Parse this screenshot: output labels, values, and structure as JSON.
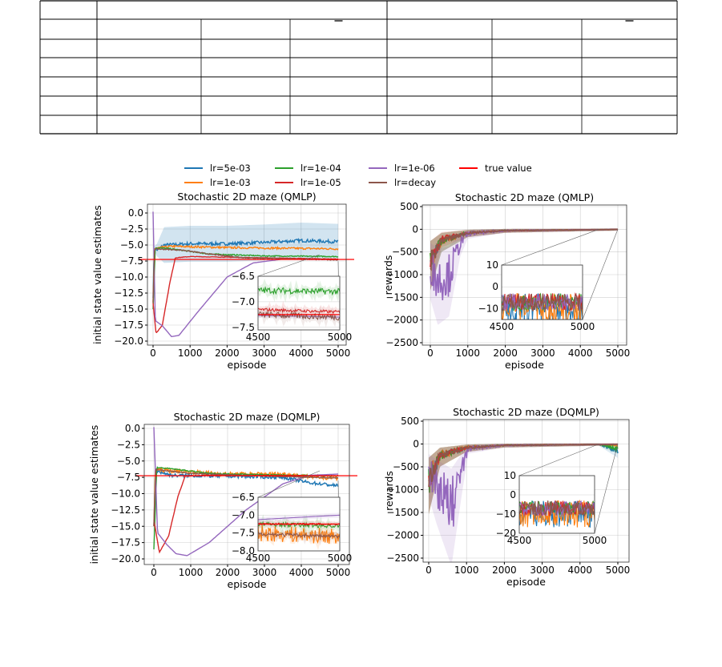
{
  "table": {
    "rows": 7,
    "columns": 7,
    "overbar_columns": [
      3,
      6
    ]
  },
  "legend": [
    {
      "label": "lr=5e-03",
      "color": "#1f77b4"
    },
    {
      "label": "lr=1e-03",
      "color": "#ff7f0e"
    },
    {
      "label": "lr=1e-04",
      "color": "#2ca02c"
    },
    {
      "label": "lr=1e-05",
      "color": "#d62728"
    },
    {
      "label": "lr=1e-06",
      "color": "#9467bd"
    },
    {
      "label": "lr=decay",
      "color": "#8c564b"
    },
    {
      "label": "true value",
      "color": "#ff0000"
    }
  ],
  "chart_data": [
    {
      "type": "line",
      "title": "Stochastic 2D maze (QMLP)",
      "xlabel": "episode",
      "ylabel": "initial state value estimates",
      "xlim": [
        -200,
        5200
      ],
      "ylim": [
        -21,
        1.5
      ],
      "xticks": [
        0,
        1000,
        2000,
        3000,
        4000,
        5000
      ],
      "yticks": [
        0.0,
        -2.5,
        -5.0,
        -7.5,
        -10.0,
        -12.5,
        -15.0,
        -17.5,
        -20.0
      ],
      "ytick_labels": [
        "0.0",
        "−2.5",
        "−5.0",
        "−7.5",
        "−10.0",
        "−12.5",
        "−15.0",
        "−17.5",
        "−20.0"
      ],
      "true_value": -7.25,
      "grid": true,
      "series": [
        {
          "name": "lr=5e-03",
          "points": [
            [
              0,
              -13
            ],
            [
              30,
              -5.5
            ],
            [
              100,
              -5.8
            ],
            [
              300,
              -5
            ],
            [
              1000,
              -4.8
            ],
            [
              2000,
              -4.8
            ],
            [
              3000,
              -4.6
            ],
            [
              4000,
              -4.3
            ],
            [
              5000,
              -4.5
            ]
          ],
          "noise": 0.25,
          "band": 2.8
        },
        {
          "name": "lr=1e-03",
          "points": [
            [
              0,
              -14
            ],
            [
              40,
              -5.5
            ],
            [
              500,
              -5.2
            ],
            [
              2000,
              -5.4
            ],
            [
              5000,
              -5.6
            ]
          ],
          "noise": 0.15
        },
        {
          "name": "lr=1e-04",
          "points": [
            [
              0,
              -15
            ],
            [
              60,
              -5.4
            ],
            [
              500,
              -5.6
            ],
            [
              1500,
              -6.4
            ],
            [
              3000,
              -6.7
            ],
            [
              5000,
              -6.8
            ]
          ],
          "noise": 0.08
        },
        {
          "name": "lr=1e-05",
          "points": [
            [
              0,
              -14
            ],
            [
              80,
              -18.8
            ],
            [
              250,
              -17.5
            ],
            [
              450,
              -11
            ],
            [
              600,
              -7
            ],
            [
              1000,
              -6.8
            ],
            [
              3000,
              -7
            ],
            [
              5000,
              -7.2
            ]
          ],
          "noise": 0.04
        },
        {
          "name": "lr=1e-06",
          "points": [
            [
              0,
              0.2
            ],
            [
              60,
              -16.8
            ],
            [
              250,
              -17.6
            ],
            [
              500,
              -19.3
            ],
            [
              700,
              -19.1
            ],
            [
              1200,
              -15.5
            ],
            [
              2000,
              -10
            ],
            [
              2700,
              -7.8
            ],
            [
              3500,
              -7.2
            ],
            [
              5000,
              -7.3
            ]
          ],
          "noise": 0
        },
        {
          "name": "lr=decay",
          "points": [
            [
              0,
              -14
            ],
            [
              40,
              -5.6
            ],
            [
              800,
              -5.8
            ],
            [
              1500,
              -6.4
            ],
            [
              2500,
              -7
            ],
            [
              4000,
              -7.2
            ],
            [
              5000,
              -7.3
            ]
          ],
          "noise": 0.08
        }
      ],
      "inset": {
        "xlim": [
          4500,
          5000
        ],
        "ylim": [
          -7.55,
          -6.5
        ],
        "yticks": [
          -6.5,
          -7.0,
          -7.5
        ],
        "ytick_labels": [
          "−6.5",
          "−7.0",
          "−7.5"
        ],
        "xticks": [
          4500,
          5000
        ]
      }
    },
    {
      "type": "line",
      "title": "Stochastic 2D maze (QMLP)",
      "xlabel": "episode",
      "ylabel": "rewards",
      "xlim": [
        -200,
        5200
      ],
      "ylim": [
        -2550,
        500
      ],
      "xticks": [
        0,
        1000,
        2000,
        3000,
        4000,
        5000
      ],
      "yticks": [
        500,
        0,
        -500,
        -1000,
        -1500,
        -2000,
        -2500
      ],
      "ytick_labels": [
        "500",
        "0",
        "−500",
        "−1000",
        "−1500",
        "−2000",
        "−2500"
      ],
      "grid": true,
      "series": [
        {
          "name": "lr=5e-03",
          "points": [
            [
              0,
              -700
            ],
            [
              300,
              -250
            ],
            [
              1000,
              -80
            ],
            [
              2000,
              -30
            ],
            [
              5000,
              -5
            ]
          ],
          "noise": 0.4
        },
        {
          "name": "lr=1e-03",
          "points": [
            [
              0,
              -700
            ],
            [
              300,
              -250
            ],
            [
              1000,
              -80
            ],
            [
              2000,
              -30
            ],
            [
              5000,
              -5
            ]
          ],
          "noise": 0.4
        },
        {
          "name": "lr=1e-04",
          "points": [
            [
              0,
              -700
            ],
            [
              300,
              -250
            ],
            [
              1000,
              -80
            ],
            [
              2000,
              -30
            ],
            [
              5000,
              -5
            ]
          ],
          "noise": 0.4
        },
        {
          "name": "lr=1e-05",
          "points": [
            [
              0,
              -700
            ],
            [
              300,
              -200
            ],
            [
              1000,
              -80
            ],
            [
              2000,
              -30
            ],
            [
              5000,
              -5
            ]
          ],
          "noise": 0.4
        },
        {
          "name": "lr=1e-06",
          "points": [
            [
              0,
              -800
            ],
            [
              200,
              -1100
            ],
            [
              500,
              -1000
            ],
            [
              800,
              -300
            ],
            [
              1000,
              -100
            ],
            [
              2000,
              -30
            ],
            [
              5000,
              -5
            ]
          ],
          "noise": 0.6
        },
        {
          "name": "lr=decay",
          "points": [
            [
              0,
              -700
            ],
            [
              300,
              -250
            ],
            [
              1000,
              -80
            ],
            [
              2000,
              -30
            ],
            [
              5000,
              -5
            ]
          ],
          "noise": 0.4
        }
      ],
      "inset": {
        "xlim": [
          4500,
          5000
        ],
        "ylim": [
          -15,
          10
        ],
        "yticks": [
          10,
          0,
          -10
        ],
        "ytick_labels": [
          "10",
          "0",
          "−10"
        ],
        "xticks": [
          4500,
          5000
        ]
      }
    },
    {
      "type": "line",
      "title": "Stochastic 2D maze (DQMLP)",
      "xlabel": "episode",
      "ylabel": "initial state value estimates",
      "xlim": [
        -200,
        5200
      ],
      "ylim": [
        -20.5,
        1.3
      ],
      "xticks": [
        0,
        1000,
        2000,
        3000,
        4000,
        5000
      ],
      "yticks": [
        0.0,
        -2.5,
        -5.0,
        -7.5,
        -10.0,
        -12.5,
        -15.0,
        -17.5,
        -20.0
      ],
      "ytick_labels": [
        "0.0",
        "−2.5",
        "−5.0",
        "−7.5",
        "−10.0",
        "−12.5",
        "−15.0",
        "−17.5",
        "−20.0"
      ],
      "true_value": -7.25,
      "grid": true,
      "series": [
        {
          "name": "lr=5e-03",
          "points": [
            [
              0,
              -15
            ],
            [
              40,
              -6.5
            ],
            [
              500,
              -7.2
            ],
            [
              2000,
              -7.3
            ],
            [
              3500,
              -7.5
            ],
            [
              4200,
              -8.3
            ],
            [
              5000,
              -8.8
            ]
          ],
          "noise": 0.25
        },
        {
          "name": "lr=1e-03",
          "points": [
            [
              0,
              -15
            ],
            [
              40,
              -6.3
            ],
            [
              500,
              -6.5
            ],
            [
              2000,
              -7
            ],
            [
              3500,
              -7
            ],
            [
              4500,
              -7.5
            ],
            [
              5000,
              -7.6
            ]
          ],
          "noise": 0.3
        },
        {
          "name": "lr=1e-04",
          "points": [
            [
              0,
              -18.5
            ],
            [
              80,
              -6
            ],
            [
              500,
              -6.2
            ],
            [
              1500,
              -6.9
            ],
            [
              3000,
              -7.1
            ],
            [
              5000,
              -7.3
            ]
          ],
          "noise": 0.08
        },
        {
          "name": "lr=1e-05",
          "points": [
            [
              0,
              -14
            ],
            [
              150,
              -19
            ],
            [
              400,
              -16.5
            ],
            [
              650,
              -10.5
            ],
            [
              850,
              -7.3
            ],
            [
              1500,
              -7.2
            ],
            [
              5000,
              -7.25
            ]
          ],
          "noise": 0.03
        },
        {
          "name": "lr=1e-06",
          "points": [
            [
              0,
              0.2
            ],
            [
              100,
              -16
            ],
            [
              350,
              -17.8
            ],
            [
              600,
              -19.2
            ],
            [
              900,
              -19.5
            ],
            [
              1500,
              -17.5
            ],
            [
              2500,
              -12.5
            ],
            [
              3500,
              -8.5
            ],
            [
              4200,
              -7.2
            ],
            [
              5000,
              -7.0
            ]
          ],
          "noise": 0
        },
        {
          "name": "lr=decay",
          "points": [
            [
              0,
              -15
            ],
            [
              50,
              -6.3
            ],
            [
              1000,
              -6.9
            ],
            [
              3000,
              -7.3
            ],
            [
              5000,
              -7.6
            ]
          ],
          "noise": 0.06
        }
      ],
      "inset": {
        "xlim": [
          4500,
          5000
        ],
        "ylim": [
          -8.0,
          -6.5
        ],
        "yticks": [
          -6.5,
          -7.0,
          -7.5,
          -8.0
        ],
        "ytick_labels": [
          "−6.5",
          "−7.0",
          "−7.5",
          "−8.0"
        ],
        "xticks": [
          4500,
          5000
        ]
      }
    },
    {
      "type": "line",
      "title": "Stochastic 2D maze (DQMLP)",
      "xlabel": "episode",
      "ylabel": "rewards",
      "xlim": [
        -200,
        5200
      ],
      "ylim": [
        -2550,
        500
      ],
      "xticks": [
        0,
        1000,
        2000,
        3000,
        4000,
        5000
      ],
      "yticks": [
        500,
        0,
        -500,
        -1000,
        -1500,
        -2000,
        -2500
      ],
      "ytick_labels": [
        "500",
        "0",
        "−500",
        "−1000",
        "−1500",
        "−2000",
        "−2500"
      ],
      "grid": true,
      "series": [
        {
          "name": "lr=5e-03",
          "points": [
            [
              0,
              -800
            ],
            [
              300,
              -250
            ],
            [
              1000,
              -80
            ],
            [
              2000,
              -30
            ],
            [
              4500,
              -10
            ],
            [
              5000,
              -150
            ]
          ],
          "noise": 0.5
        },
        {
          "name": "lr=1e-03",
          "points": [
            [
              0,
              -800
            ],
            [
              300,
              -250
            ],
            [
              1000,
              -80
            ],
            [
              2000,
              -30
            ],
            [
              4500,
              -10
            ],
            [
              5000,
              -40
            ]
          ],
          "noise": 0.5
        },
        {
          "name": "lr=1e-04",
          "points": [
            [
              0,
              -800
            ],
            [
              300,
              -250
            ],
            [
              1000,
              -80
            ],
            [
              2000,
              -30
            ],
            [
              4500,
              -10
            ],
            [
              5000,
              -100
            ]
          ],
          "noise": 0.5
        },
        {
          "name": "lr=1e-05",
          "points": [
            [
              0,
              -800
            ],
            [
              300,
              -250
            ],
            [
              1000,
              -80
            ],
            [
              2000,
              -30
            ],
            [
              5000,
              -5
            ]
          ],
          "noise": 0.4
        },
        {
          "name": "lr=1e-06",
          "points": [
            [
              0,
              -600
            ],
            [
              200,
              -900
            ],
            [
              600,
              -1400
            ],
            [
              900,
              -500
            ],
            [
              1050,
              -100
            ],
            [
              2000,
              -30
            ],
            [
              5000,
              -5
            ]
          ],
          "noise": 0.6
        },
        {
          "name": "lr=decay",
          "points": [
            [
              0,
              -800
            ],
            [
              300,
              -250
            ],
            [
              1000,
              -80
            ],
            [
              2000,
              -30
            ],
            [
              5000,
              -5
            ]
          ],
          "noise": 0.4
        }
      ],
      "inset": {
        "xlim": [
          4500,
          5000
        ],
        "ylim": [
          -20,
          10
        ],
        "yticks": [
          10,
          0,
          -10,
          -20
        ],
        "ytick_labels": [
          "10",
          "0",
          "−10",
          "−20"
        ],
        "xticks": [
          4500,
          5000
        ]
      }
    }
  ]
}
